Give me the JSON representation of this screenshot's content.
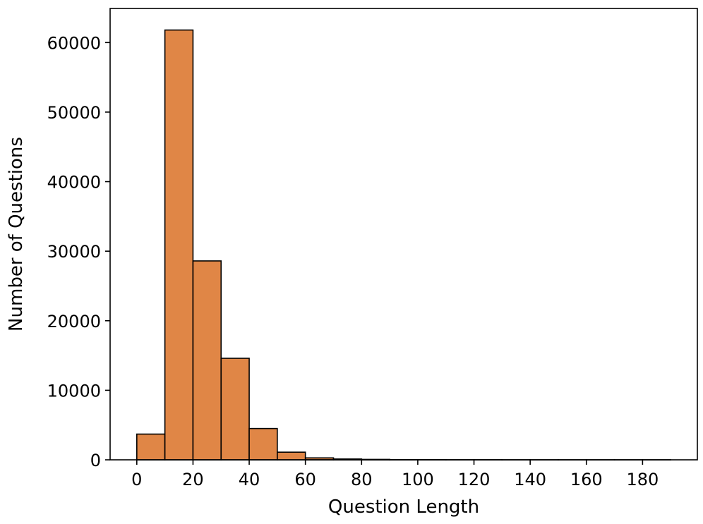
{
  "chart_data": {
    "type": "bar",
    "title": "",
    "xlabel": "Question Length",
    "ylabel": "Number of Questions",
    "bin_width": 10,
    "bin_starts": [
      0,
      10,
      20,
      30,
      40,
      50,
      60,
      70,
      80,
      90,
      100,
      110,
      120,
      130,
      140,
      150,
      160,
      170,
      180
    ],
    "values": [
      3700,
      61800,
      28600,
      14600,
      4500,
      1100,
      280,
      120,
      60,
      30,
      20,
      10,
      10,
      5,
      5,
      5,
      5,
      5,
      5
    ],
    "xlim": [
      -9.5,
      199.5
    ],
    "ylim": [
      0,
      64900
    ],
    "xticks": [
      0,
      20,
      40,
      60,
      80,
      100,
      120,
      140,
      160,
      180
    ],
    "xtick_labels": [
      "0",
      "20",
      "40",
      "60",
      "80",
      "100",
      "120",
      "140",
      "160",
      "180"
    ],
    "yticks": [
      0,
      10000,
      20000,
      30000,
      40000,
      50000,
      60000
    ],
    "ytick_labels": [
      "0",
      "10000",
      "20000",
      "30000",
      "40000",
      "50000",
      "60000"
    ],
    "bar_color": "#e08646",
    "edge_color": "#000000",
    "grid": false,
    "legend": false
  }
}
